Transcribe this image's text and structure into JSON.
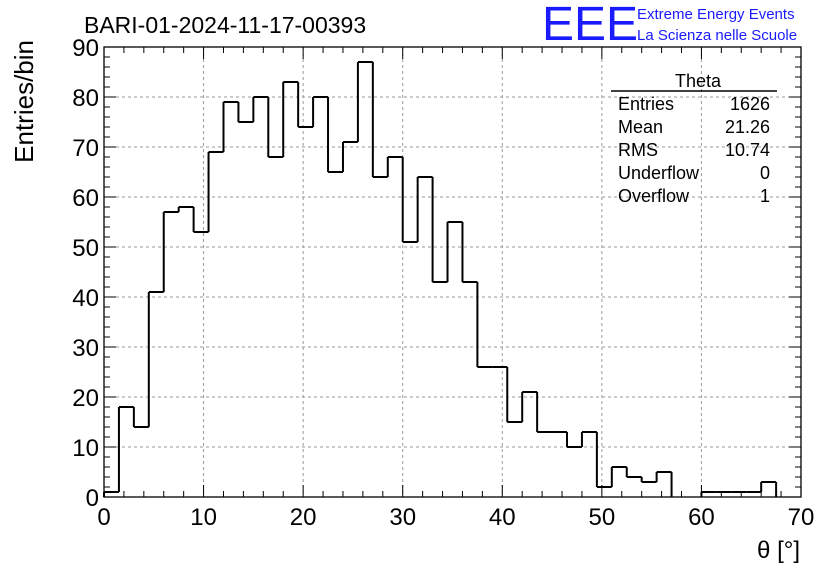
{
  "chart_data": {
    "type": "histogram",
    "title": "BARI-01-2024-11-17-00393",
    "xlabel": "θ [°]",
    "ylabel": "Entries/bin",
    "xlim": [
      0,
      70
    ],
    "ylim": [
      0,
      90
    ],
    "xticks": [
      0,
      10,
      20,
      30,
      40,
      50,
      60,
      70
    ],
    "yticks": [
      0,
      10,
      20,
      30,
      40,
      50,
      60,
      70,
      80,
      90
    ],
    "grid": true,
    "bin_width": 1.5,
    "bin_edges_start": 0,
    "values": [
      1,
      18,
      14,
      41,
      57,
      58,
      53,
      69,
      79,
      75,
      80,
      68,
      83,
      74,
      80,
      65,
      71,
      87,
      64,
      68,
      51,
      64,
      43,
      55,
      43,
      26,
      26,
      15,
      21,
      13,
      13,
      10,
      13,
      2,
      6,
      4,
      3,
      5,
      0,
      0,
      1,
      1,
      1,
      1,
      3,
      0,
      0
    ],
    "stats_box": {
      "title": "Theta",
      "rows": [
        {
          "label": "Entries",
          "value": "1626"
        },
        {
          "label": "Mean",
          "value": "21.26"
        },
        {
          "label": "RMS",
          "value": "10.74"
        },
        {
          "label": "Underflow",
          "value": "0"
        },
        {
          "label": "Overflow",
          "value": "1"
        }
      ]
    },
    "logo": {
      "mark": "EEE",
      "line1": "Extreme Energy Events",
      "line2": "La Scienza nelle Scuole",
      "color": "#1a1aff"
    },
    "line_color": "#000000",
    "grid_color": "#9a9a9a"
  }
}
